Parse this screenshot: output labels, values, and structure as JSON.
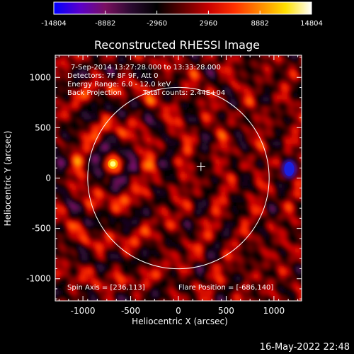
{
  "chart_data": {
    "type": "heatmap",
    "title": "Reconstructed RHESSI Image",
    "xlabel": "Heliocentric X (arcsec)",
    "ylabel": "Heliocentric Y (arcsec)",
    "xlim": [
      -1290,
      1290
    ],
    "ylim": [
      -1220,
      1220
    ],
    "x_ticks": [
      -1000,
      -500,
      0,
      500,
      1000
    ],
    "y_ticks": [
      -1000,
      -500,
      0,
      500,
      1000
    ],
    "colorbar": {
      "min": -14804,
      "max": 14804,
      "tick_labels": [
        "-14804",
        "-8882",
        "-2960",
        "2960",
        "8882",
        "14804"
      ],
      "colors": [
        "#0000ff",
        "#5a00cc",
        "#7a1060",
        "#2a0a30",
        "#000000",
        "#600000",
        "#c80000",
        "#ff3000",
        "#ff8800",
        "#ffe000",
        "#ffffff"
      ]
    },
    "annotations": [
      "7-Sep-2014 13:27:28.000 to 13:33:28.000",
      "Detectors: 7F 8F 9F, Att 0",
      "Energy Range: 6.0 - 12.0 keV",
      "Back Projection",
      "Total counts: 2.44E+04"
    ],
    "spin_axis_text": "Spin Axis = [236,113]",
    "flare_position_text": "Flare Position = [-686,140]",
    "solar_disk": {
      "center": [
        0,
        0
      ],
      "radius": 950
    },
    "spin_axis_marker": [
      236,
      113
    ],
    "bright_source": {
      "x": -686,
      "y": 140,
      "value": 14804
    },
    "negative_source": {
      "x": 1160,
      "y": 90,
      "value": -14804
    }
  },
  "footer": {
    "date": "16-May-2022 22:48"
  }
}
